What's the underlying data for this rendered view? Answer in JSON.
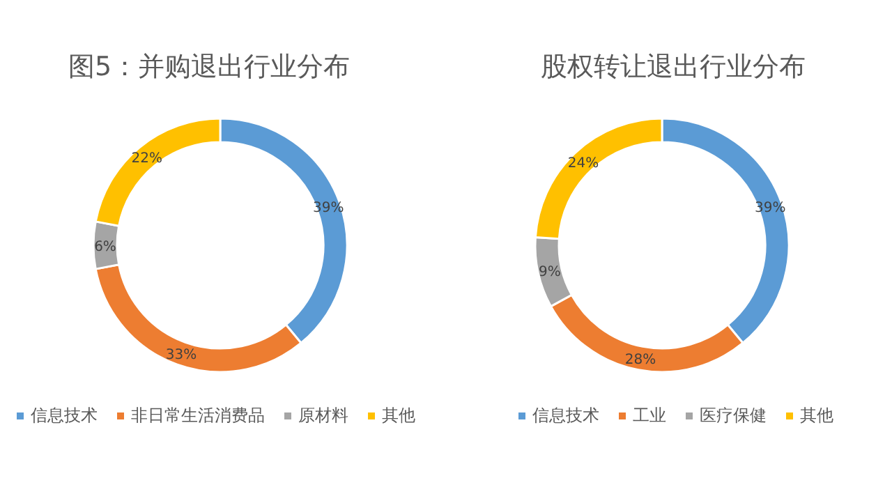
{
  "chart_data": [
    {
      "type": "donut",
      "title": "图5：并购退出行业分布",
      "categories": [
        "信息技术",
        "非日常生活消费品",
        "原材料",
        "其他"
      ],
      "values": [
        39,
        33,
        6,
        22
      ],
      "value_labels": [
        "39%",
        "33%",
        "6%",
        "22%"
      ],
      "colors": [
        "#5b9bd5",
        "#ed7d31",
        "#a5a5a5",
        "#ffc000"
      ],
      "legend": "bottom"
    },
    {
      "type": "donut",
      "title": "股权转让退出行业分布",
      "categories": [
        "信息技术",
        "工业",
        "医疗保健",
        "其他"
      ],
      "values": [
        39,
        28,
        9,
        24
      ],
      "value_labels": [
        "39%",
        "28%",
        "9%",
        "24%"
      ],
      "colors": [
        "#5b9bd5",
        "#ed7d31",
        "#a5a5a5",
        "#ffc000"
      ],
      "legend": "bottom"
    }
  ]
}
